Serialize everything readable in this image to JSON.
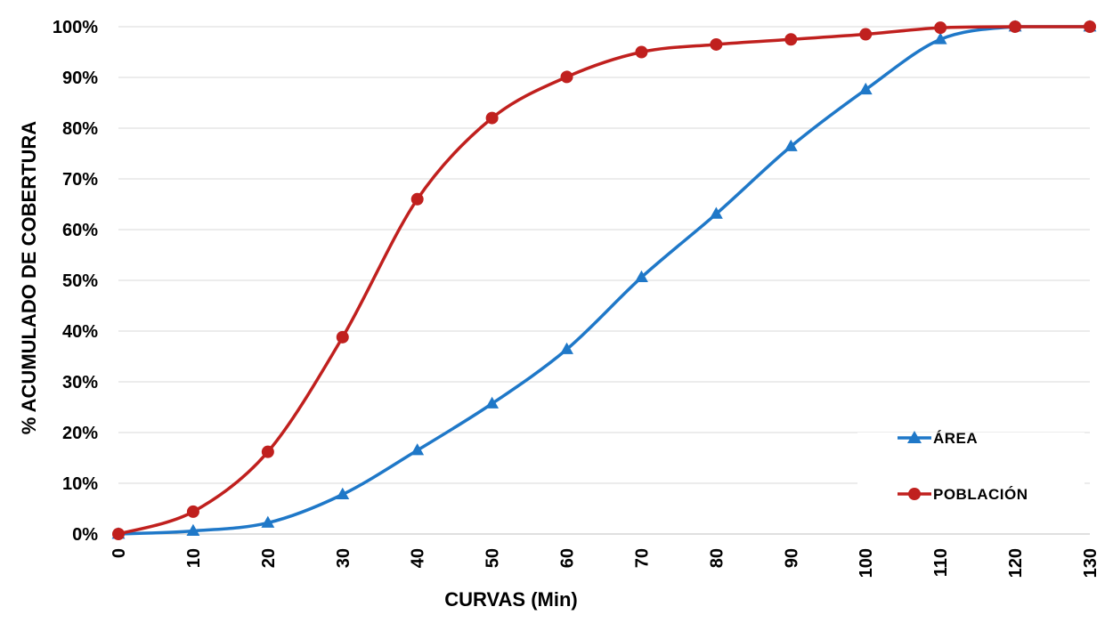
{
  "chart_data": {
    "type": "line",
    "title": "",
    "xlabel": "CURVAS (Min)",
    "ylabel": "% ACUMULADO  DE COBERTURA",
    "x": [
      0,
      10,
      20,
      30,
      40,
      50,
      60,
      70,
      80,
      90,
      100,
      110,
      120,
      130
    ],
    "x_tick_labels": [
      "0",
      "10",
      "20",
      "30",
      "40",
      "50",
      "60",
      "70",
      "80",
      "90",
      "100",
      "110",
      "120",
      "130"
    ],
    "ylim": [
      0,
      100
    ],
    "y_ticks": [
      0,
      10,
      20,
      30,
      40,
      50,
      60,
      70,
      80,
      90,
      100
    ],
    "y_tick_labels": [
      "0%",
      "10%",
      "20%",
      "30%",
      "40%",
      "50%",
      "60%",
      "70%",
      "80%",
      "90%",
      "100%"
    ],
    "grid": "horizontal",
    "legend_position": "bottom-right",
    "smooth": true,
    "series": [
      {
        "name": "ÁREA",
        "color": "#1f78c8",
        "marker": "triangle",
        "values": [
          0,
          0.6,
          2.2,
          7.8,
          16.5,
          25.7,
          36.4,
          50.6,
          63.1,
          76.4,
          87.6,
          97.5,
          100,
          100
        ]
      },
      {
        "name": "POBLACIÓN",
        "color": "#c0201e",
        "marker": "circle",
        "values": [
          0,
          4.4,
          16.2,
          38.8,
          66,
          82,
          90.1,
          95,
          96.5,
          97.5,
          98.5,
          99.8,
          100,
          100
        ]
      }
    ]
  }
}
